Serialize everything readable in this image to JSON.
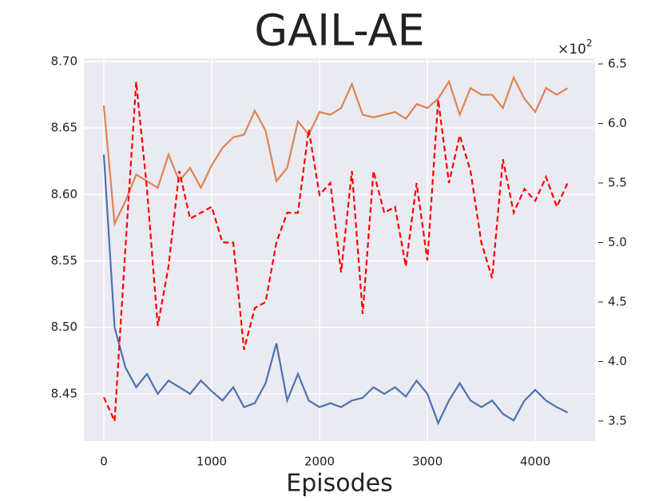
{
  "chart_data": {
    "type": "line",
    "title": "GAIL-AE",
    "x_label": "Episodes",
    "x": [
      0,
      100,
      200,
      300,
      400,
      500,
      600,
      700,
      800,
      900,
      1000,
      1100,
      1200,
      1300,
      1400,
      1500,
      1600,
      1700,
      1800,
      1900,
      2000,
      2100,
      2200,
      2300,
      2400,
      2500,
      2600,
      2700,
      2800,
      2900,
      3000,
      3100,
      3200,
      3300,
      3400,
      3500,
      3600,
      3700,
      3800,
      3900,
      4000,
      4100,
      4200,
      4300
    ],
    "series": [
      {
        "color": "#4c72b0",
        "axis": "y",
        "linestyle": "solid",
        "values": [
          8.63,
          8.5,
          8.47,
          8.455,
          8.465,
          8.45,
          8.46,
          8.455,
          8.45,
          8.46,
          8.452,
          8.445,
          8.455,
          8.44,
          8.443,
          8.458,
          8.488,
          8.445,
          8.465,
          8.445,
          8.44,
          8.443,
          8.44,
          8.445,
          8.447,
          8.455,
          8.45,
          8.455,
          8.448,
          8.46,
          8.45,
          8.428,
          8.445,
          8.458,
          8.445,
          8.44,
          8.445,
          8.435,
          8.43,
          8.445,
          8.453,
          8.445,
          8.44,
          8.436
        ]
      },
      {
        "color": "#dd8452",
        "axis": "y",
        "linestyle": "solid",
        "values": [
          8.667,
          8.578,
          8.595,
          8.615,
          8.61,
          8.605,
          8.63,
          8.61,
          8.62,
          8.605,
          8.622,
          8.635,
          8.643,
          8.645,
          8.663,
          8.648,
          8.61,
          8.62,
          8.655,
          8.645,
          8.662,
          8.66,
          8.665,
          8.683,
          8.66,
          8.658,
          8.66,
          8.662,
          8.657,
          8.668,
          8.665,
          8.672,
          8.685,
          8.66,
          8.68,
          8.675,
          8.675,
          8.665,
          8.688,
          8.672,
          8.662,
          8.68,
          8.675,
          8.68
        ]
      },
      {
        "color": "#ff0000",
        "axis": "y2",
        "linestyle": "dashed",
        "values": [
          3.7,
          3.5,
          4.95,
          6.35,
          5.45,
          4.3,
          4.8,
          5.6,
          5.2,
          5.25,
          5.3,
          5.0,
          5.0,
          4.1,
          4.45,
          4.5,
          5.0,
          5.25,
          5.25,
          5.95,
          5.4,
          5.5,
          4.75,
          5.6,
          4.4,
          5.6,
          5.25,
          5.3,
          4.8,
          5.5,
          4.85,
          6.2,
          5.5,
          5.9,
          5.6,
          5.0,
          4.7,
          5.7,
          5.25,
          5.45,
          5.35,
          5.55,
          5.3,
          5.5
        ]
      }
    ],
    "xlim": [
      -185,
      4555
    ],
    "xticks": [
      0,
      1000,
      2000,
      3000,
      4000
    ],
    "ylim": [
      8.4145,
      8.7024
    ],
    "yticks": [
      8.45,
      {
        "value": 8.5,
        "label": "8.50"
      },
      8.55,
      {
        "value": 8.6,
        "label": "8.60"
      },
      8.65,
      {
        "value": 8.7,
        "label": "8.70"
      }
    ],
    "y2lim": [
      3.332,
      6.547
    ],
    "y2ticks": [
      3.5,
      {
        "value": 4,
        "label": "4.0"
      },
      4.5,
      {
        "value": 5,
        "label": "5.0"
      },
      5.5,
      {
        "value": 6,
        "label": "6.0"
      },
      6.5
    ],
    "y2_multiplier": {
      "base": "×10",
      "exponent": "2"
    },
    "grid": true,
    "background": "#eaeaf2"
  }
}
